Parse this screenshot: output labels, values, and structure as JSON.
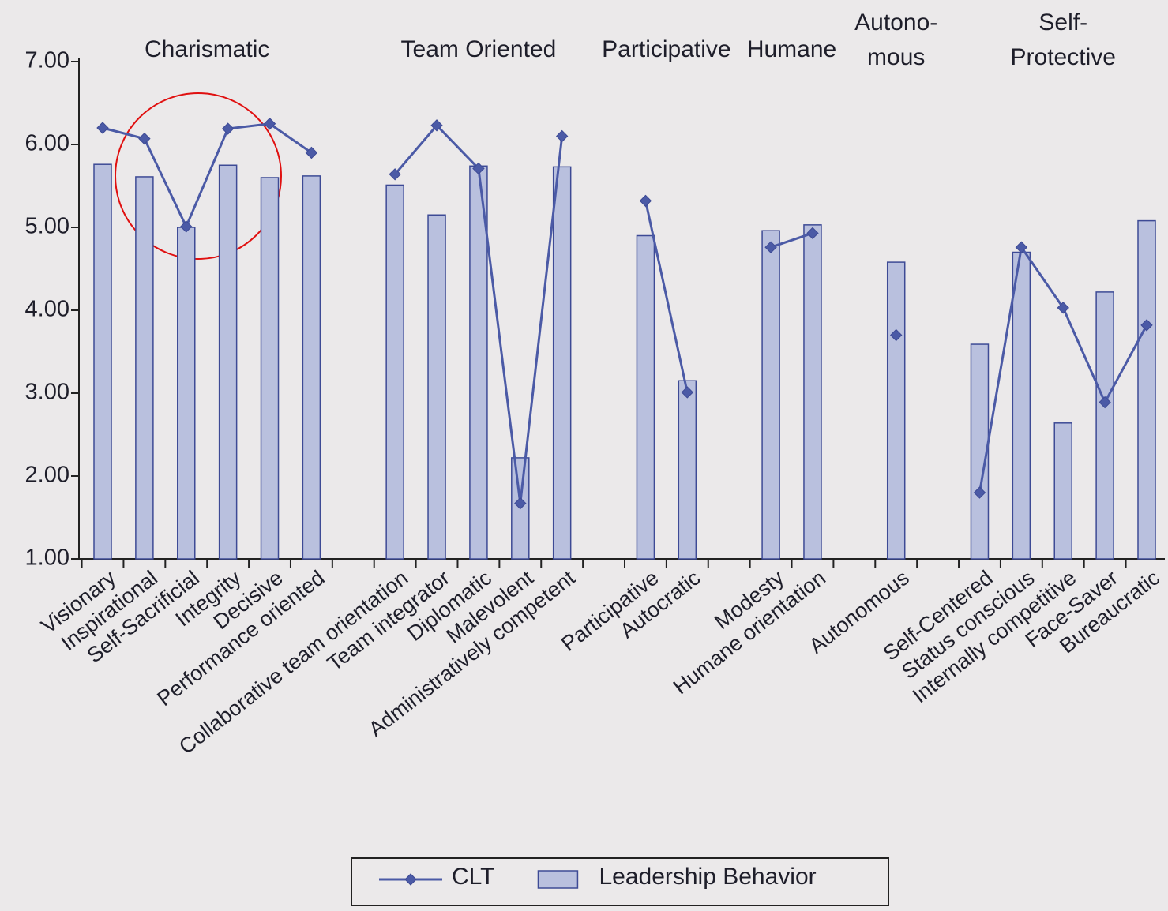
{
  "chart_data": {
    "type": "bar",
    "categories": [
      "Visionary",
      "Inspirational",
      "Self-Sacrificial",
      "Integrity",
      "Decisive",
      "Performance oriented",
      null,
      "Collaborative team orientation",
      "Team integrator",
      "Diplomatic",
      "Malevolent",
      "Administratively competent",
      null,
      "Participative",
      "Autocratic",
      null,
      "Modesty",
      "Humane orientation",
      null,
      "Autonomous",
      null,
      "Self-Centered",
      "Status conscious",
      "Internally competitive",
      "Face-Saver",
      "Bureaucratic"
    ],
    "groups": [
      [
        "Charismatic"
      ],
      [
        "Team Oriented"
      ],
      [
        "Participative"
      ],
      [
        "Humane"
      ],
      [
        "Autono-",
        "mous"
      ],
      [
        "Self-",
        "Protective"
      ]
    ],
    "series": [
      {
        "name": "CLT",
        "type": "line",
        "color": "#4b5aa6",
        "values": [
          6.2,
          6.07,
          5.01,
          6.19,
          6.25,
          5.9,
          null,
          5.64,
          6.23,
          5.71,
          1.67,
          6.1,
          null,
          5.32,
          3.01,
          null,
          4.76,
          4.93,
          null,
          3.7,
          null,
          1.8,
          4.76,
          4.03,
          2.89,
          3.82
        ]
      },
      {
        "name": "Leadership Behavior",
        "type": "bar",
        "color": "#b9c0de",
        "values": [
          5.76,
          5.61,
          5.0,
          5.75,
          5.6,
          5.62,
          null,
          5.51,
          5.15,
          5.74,
          2.22,
          5.73,
          null,
          4.9,
          3.15,
          null,
          4.96,
          5.03,
          null,
          4.58,
          null,
          3.59,
          4.7,
          2.64,
          4.22,
          5.08
        ]
      }
    ],
    "ylim": [
      1,
      7
    ],
    "yticks": [
      {
        "value": 1,
        "label": "1.00"
      },
      {
        "value": 2,
        "label": "2.00"
      },
      {
        "value": 3,
        "label": "3.00"
      },
      {
        "value": 4,
        "label": "4.00"
      },
      {
        "value": 5,
        "label": "5.00"
      },
      {
        "value": 6,
        "label": "6.00"
      },
      {
        "value": 7,
        "label": "7.00"
      }
    ],
    "grid": false,
    "legend": "bottom"
  }
}
